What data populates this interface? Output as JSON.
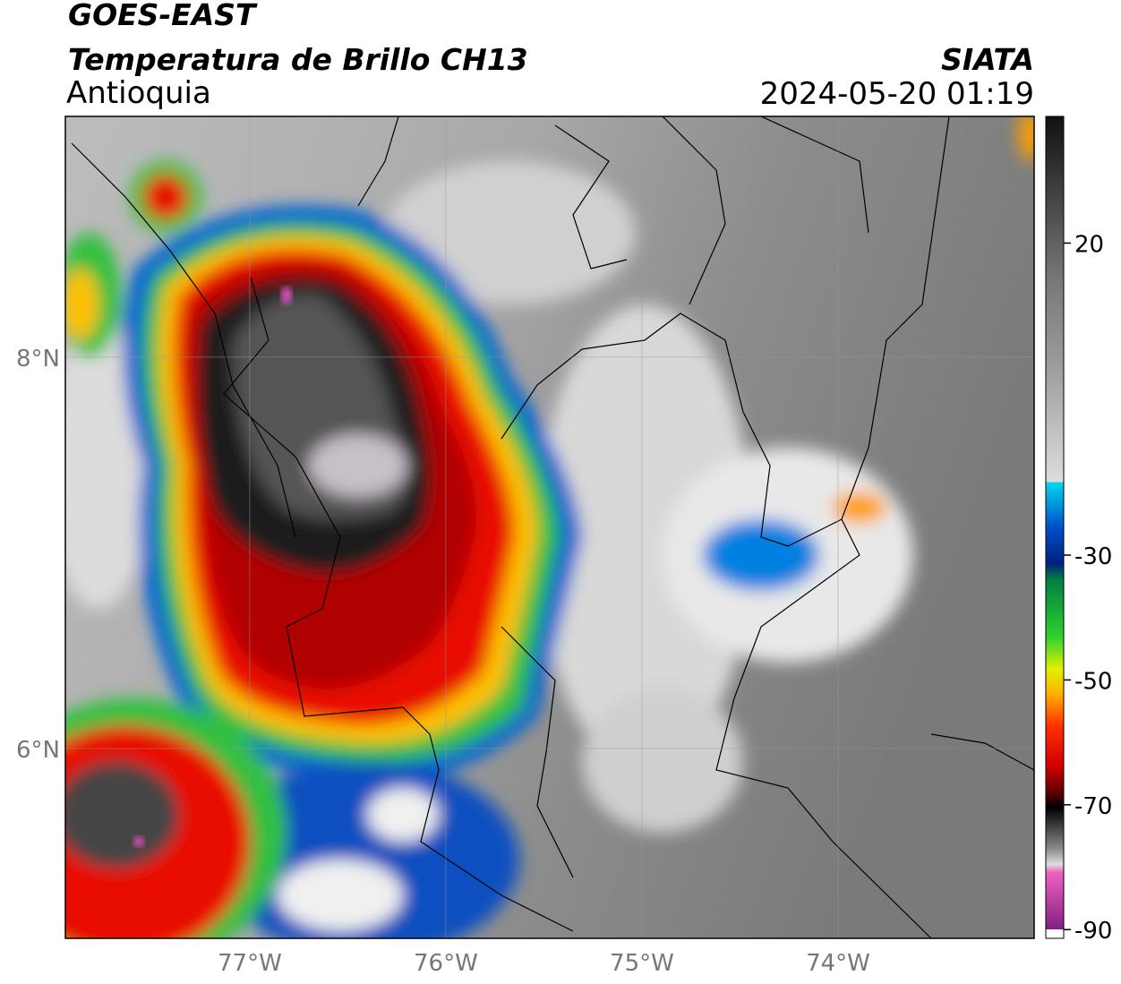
{
  "map": {
    "title": "GOES-EAST",
    "subtitle": "Temperatura de Brillo CH13",
    "region": "Antioquia",
    "source": "SIATA",
    "datetime": "2024-05-20 01:19",
    "xlim": [
      -77.94,
      -73.0
    ],
    "ylim": [
      5.03,
      9.23
    ],
    "xticks": [
      {
        "value": -77,
        "label": "77°W"
      },
      {
        "value": -76,
        "label": "76°W"
      },
      {
        "value": -75,
        "label": "75°W"
      },
      {
        "value": -74,
        "label": "74°W"
      }
    ],
    "yticks": [
      {
        "value": 8,
        "label": "8°N"
      },
      {
        "value": 6,
        "label": "6°N"
      }
    ],
    "grid": true,
    "colorbar": {
      "lim": [
        -91.4,
        40.3
      ],
      "ticks": [
        20,
        -30,
        -50,
        -70,
        -90
      ]
    }
  }
}
